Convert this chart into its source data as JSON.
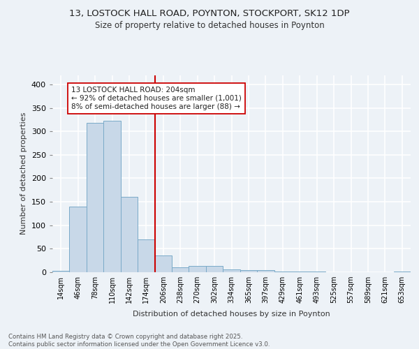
{
  "title1": "13, LOSTOCK HALL ROAD, POYNTON, STOCKPORT, SK12 1DP",
  "title2": "Size of property relative to detached houses in Poynton",
  "xlabel": "Distribution of detached houses by size in Poynton",
  "ylabel": "Number of detached properties",
  "bin_labels": [
    "14sqm",
    "46sqm",
    "78sqm",
    "110sqm",
    "142sqm",
    "174sqm",
    "206sqm",
    "238sqm",
    "270sqm",
    "302sqm",
    "334sqm",
    "365sqm",
    "397sqm",
    "429sqm",
    "461sqm",
    "493sqm",
    "525sqm",
    "557sqm",
    "589sqm",
    "621sqm",
    "653sqm"
  ],
  "bar_values": [
    3,
    140,
    318,
    322,
    160,
    70,
    35,
    10,
    14,
    14,
    6,
    5,
    4,
    1,
    1,
    1,
    0,
    0,
    0,
    0,
    2
  ],
  "bar_color": "#c8d8e8",
  "bar_edge_color": "#7aaac8",
  "vline_color": "#cc0000",
  "annotation_text": "13 LOSTOCK HALL ROAD: 204sqm\n← 92% of detached houses are smaller (1,001)\n8% of semi-detached houses are larger (88) →",
  "annotation_box_color": "#ffffff",
  "annotation_box_edge": "#cc0000",
  "ylim": [
    0,
    420
  ],
  "yticks": [
    0,
    50,
    100,
    150,
    200,
    250,
    300,
    350,
    400
  ],
  "footer": "Contains HM Land Registry data © Crown copyright and database right 2025.\nContains public sector information licensed under the Open Government Licence v3.0.",
  "bg_color": "#edf2f7",
  "plot_bg_color": "#edf2f7",
  "grid_color": "#ffffff"
}
